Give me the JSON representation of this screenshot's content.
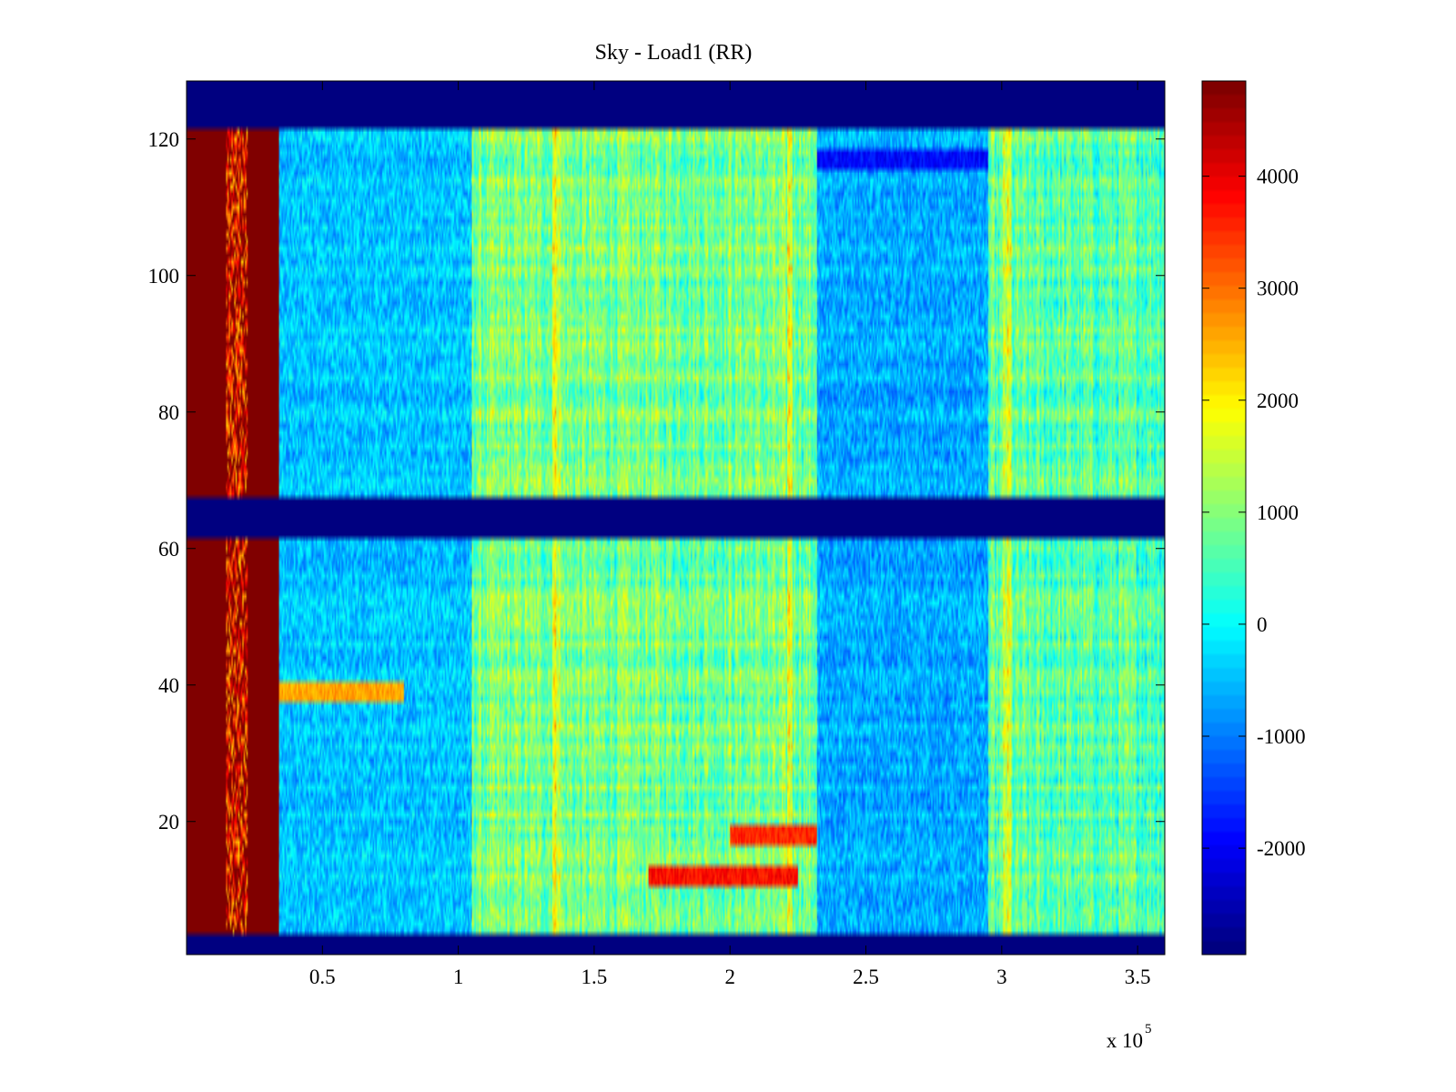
{
  "chart_data": {
    "type": "heatmap",
    "title": "Sky - Load1 (RR)",
    "xlabel": "",
    "ylabel": "",
    "x_multiplier_label": "x 10",
    "x_multiplier_exponent": "5",
    "xlim": [
      0,
      3.6
    ],
    "ylim": [
      0.5,
      128.5
    ],
    "xticks": [
      0.5,
      1,
      1.5,
      2,
      2.5,
      3,
      3.5
    ],
    "xtick_labels": [
      "0.5",
      "1",
      "1.5",
      "2",
      "2.5",
      "3",
      "3.5"
    ],
    "yticks": [
      20,
      40,
      60,
      80,
      100,
      120
    ],
    "ytick_labels": [
      "20",
      "40",
      "60",
      "80",
      "100",
      "120"
    ],
    "colormap": "jet",
    "clim": [
      -2950,
      4850
    ],
    "colorbar_ticks": [
      4000,
      3000,
      2000,
      1000,
      0,
      -1000,
      -2000
    ],
    "colorbar_labels": [
      "4000",
      "3000",
      "2000",
      "1000",
      "0",
      "-1000",
      "-2000"
    ],
    "masked_value": -2950,
    "masked_channel_rows": [
      [
        1,
        3
      ],
      [
        62,
        67
      ],
      [
        122,
        128
      ]
    ],
    "x_regions": [
      {
        "x_start": 0.0,
        "x_end": 0.34,
        "level": 4850,
        "note": "saturated band with dotted vertical column near x=0.18"
      },
      {
        "x_start": 0.34,
        "x_end": 1.05,
        "level": -450
      },
      {
        "x_start": 1.05,
        "x_end": 2.32,
        "level": 900
      },
      {
        "x_start": 2.32,
        "x_end": 2.95,
        "level": -650
      },
      {
        "x_start": 2.95,
        "x_end": 3.6,
        "level": 650
      }
    ],
    "y_features": [
      {
        "y": 39,
        "x_start": 0.34,
        "x_end": 0.8,
        "level": 2600
      },
      {
        "y": 117,
        "x_start": 2.32,
        "x_end": 2.95,
        "level": -1900
      },
      {
        "y": 12,
        "x_start": 1.7,
        "x_end": 2.25,
        "level": 3800
      },
      {
        "y": 18,
        "x_start": 2.0,
        "x_end": 2.32,
        "level": 3600
      }
    ]
  }
}
